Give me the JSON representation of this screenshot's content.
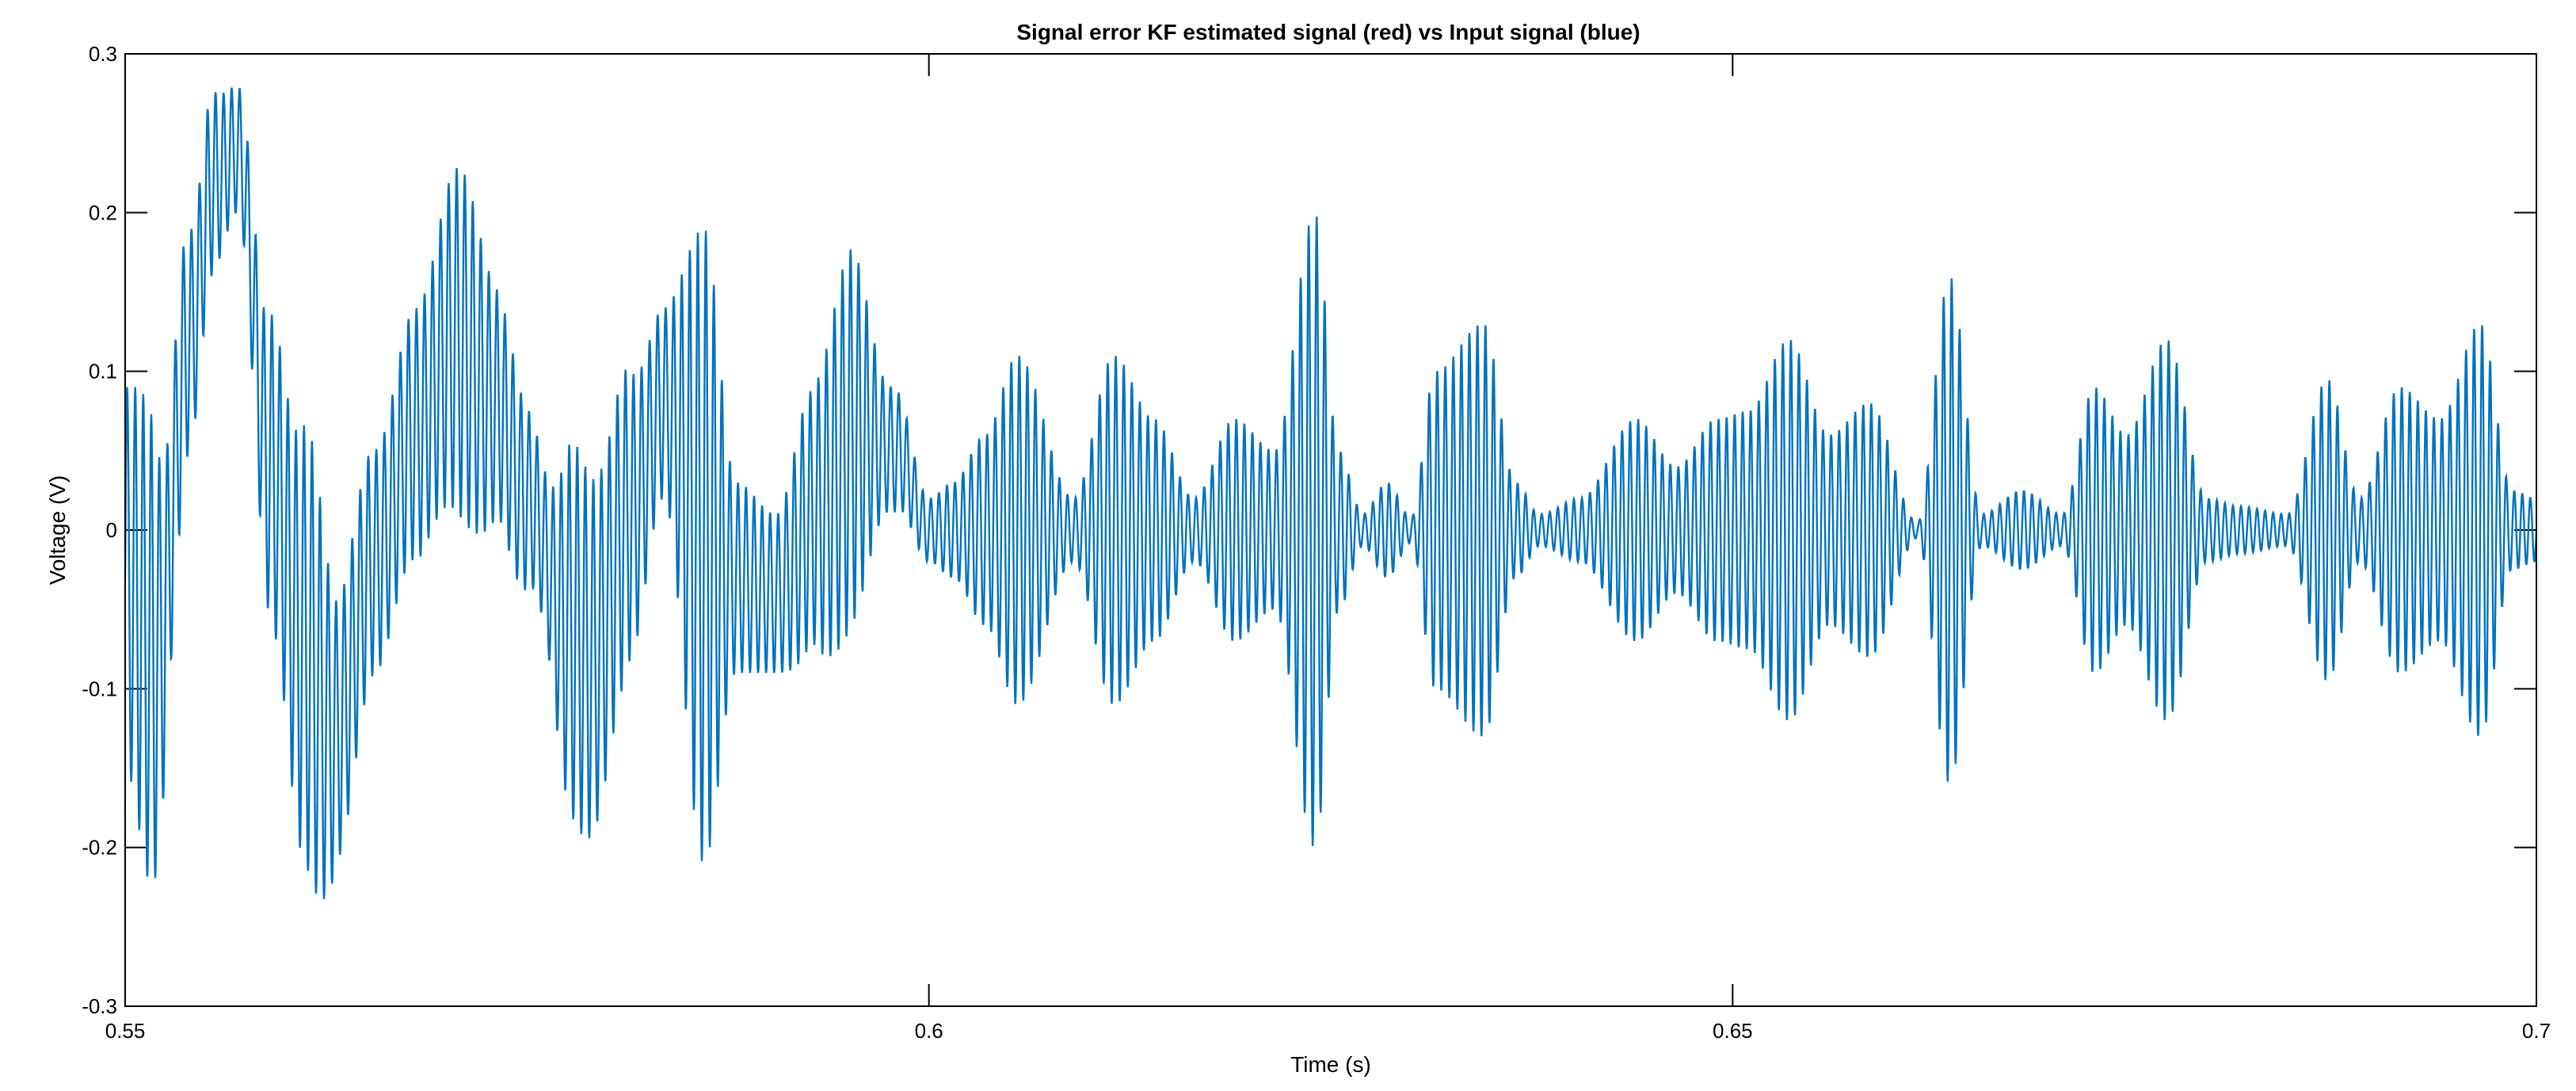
{
  "chart_data": {
    "type": "line",
    "title": "Signal error KF estimated signal (red) vs Input signal (blue)",
    "xlabel": "Time (s)",
    "ylabel": "Voltage (V)",
    "xlim": [
      0.55,
      0.7
    ],
    "ylim": [
      -0.3,
      0.3
    ],
    "xticks": [
      0.55,
      0.6,
      0.65,
      0.7
    ],
    "xtick_labels": [
      "0.55",
      "0.6",
      "0.65",
      "0.7"
    ],
    "yticks": [
      -0.3,
      -0.2,
      -0.1,
      0,
      0.1,
      0.2,
      0.3
    ],
    "ytick_labels": [
      "-0.3",
      "-0.2",
      "-0.1",
      "0",
      "0.1",
      "0.2",
      "0.3"
    ],
    "grid": false,
    "series_color": "#0072BD",
    "oscillation_period_s": 0.0005,
    "series": [
      {
        "baseline": {
          "x": [
            0.55,
            0.552,
            0.554,
            0.5555,
            0.557,
            0.559,
            0.561,
            0.563,
            0.5655,
            0.568,
            0.5705,
            0.573,
            0.575,
            0.5775,
            0.579,
            0.5815,
            0.5835,
            0.586,
            0.588,
            0.5905,
            0.593,
            0.5955,
            0.598,
            0.6,
            0.61,
            0.625,
            0.65,
            0.67,
            0.7
          ],
          "y": [
            -0.03,
            -0.08,
            0.12,
            0.22,
            0.24,
            0.04,
            -0.07,
            -0.13,
            -0.02,
            0.06,
            0.12,
            0.08,
            0.02,
            -0.06,
            -0.08,
            0.01,
            0.08,
            -0.01,
            -0.03,
            -0.04,
            0.01,
            0.06,
            0.05,
            0.0,
            0.0,
            0.0,
            0.0,
            0.0,
            0.0
          ]
        },
        "envelope": {
          "x": [
            0.55,
            0.5515,
            0.553,
            0.555,
            0.557,
            0.5595,
            0.5615,
            0.5635,
            0.566,
            0.5685,
            0.571,
            0.5735,
            0.576,
            0.578,
            0.5805,
            0.5835,
            0.586,
            0.588,
            0.5905,
            0.5925,
            0.595,
            0.5975,
            0.6,
            0.6015,
            0.6035,
            0.6055,
            0.609,
            0.6115,
            0.614,
            0.6165,
            0.619,
            0.6215,
            0.624,
            0.6255,
            0.627,
            0.6285,
            0.63,
            0.6315,
            0.6345,
            0.6365,
            0.638,
            0.6405,
            0.644,
            0.6465,
            0.649,
            0.651,
            0.6535,
            0.656,
            0.6585,
            0.6615,
            0.6635,
            0.6655,
            0.668,
            0.6705,
            0.6725,
            0.6745,
            0.677,
            0.6795,
            0.6815,
            0.6845,
            0.687,
            0.689,
            0.6915,
            0.694,
            0.6965,
            0.6985,
            0.7
          ],
          "y": [
            0.12,
            0.15,
            0.08,
            0.06,
            0.04,
            0.1,
            0.14,
            0.08,
            0.07,
            0.08,
            0.11,
            0.07,
            0.05,
            0.12,
            0.1,
            0.06,
            0.2,
            0.06,
            0.05,
            0.08,
            0.12,
            0.04,
            0.02,
            0.03,
            0.06,
            0.11,
            0.02,
            0.11,
            0.07,
            0.02,
            0.07,
            0.05,
            0.2,
            0.05,
            0.01,
            0.03,
            0.008,
            0.1,
            0.13,
            0.03,
            0.01,
            0.02,
            0.07,
            0.04,
            0.07,
            0.075,
            0.12,
            0.06,
            0.08,
            0.005,
            0.16,
            0.01,
            0.025,
            0.01,
            0.09,
            0.06,
            0.12,
            0.02,
            0.015,
            0.01,
            0.095,
            0.02,
            0.09,
            0.07,
            0.13,
            0.025,
            0.02
          ]
        }
      }
    ]
  }
}
